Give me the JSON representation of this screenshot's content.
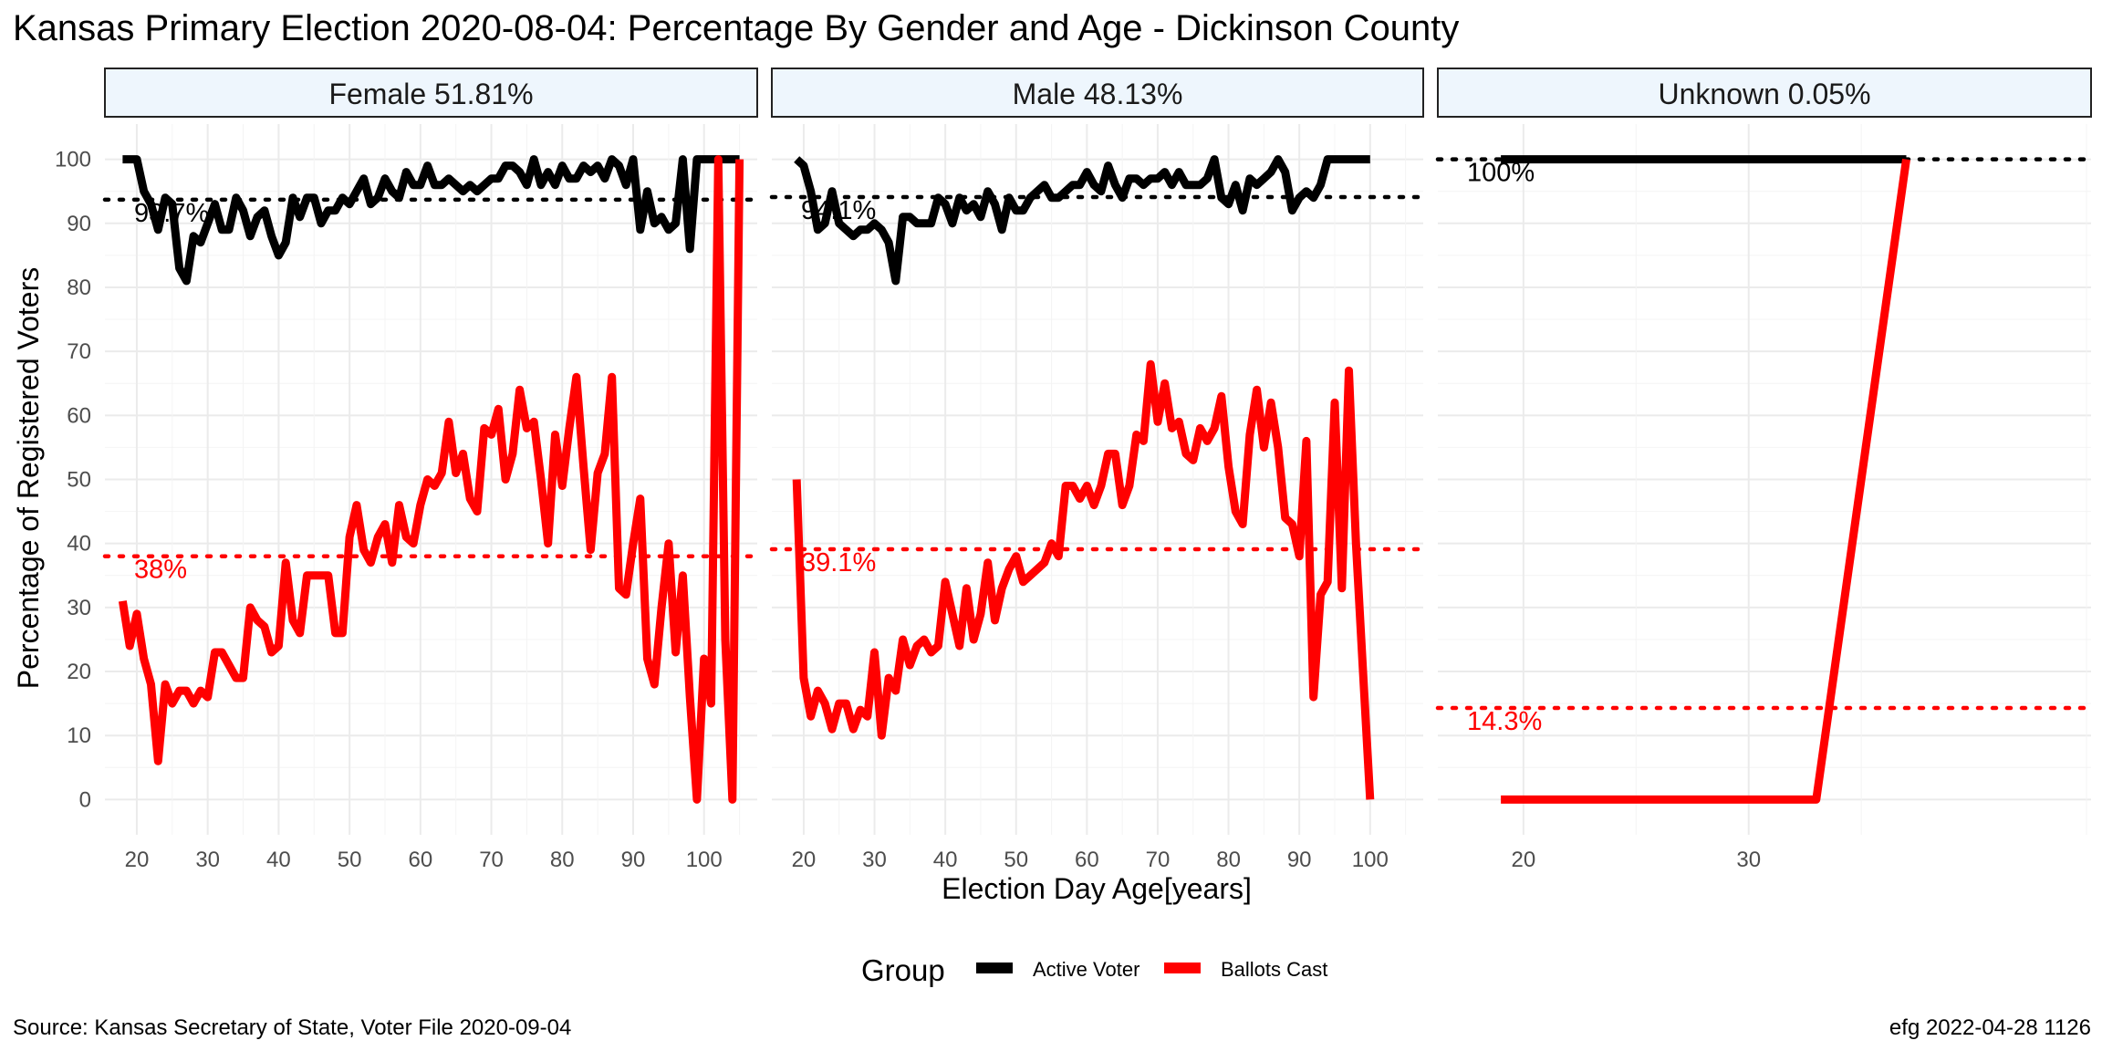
{
  "title": "Kansas Primary Election 2020-08-04:  Percentage By Gender and Age - Dickinson County",
  "xlabel": "Election Day Age[years]",
  "ylabel": "Percentage of Registered Voters",
  "legend": {
    "title": "Group",
    "position": "bottom",
    "items": [
      {
        "label": "Active Voter",
        "color": "#000000"
      },
      {
        "label": "Ballots Cast",
        "color": "#ff0000"
      }
    ]
  },
  "source": "Source:  Kansas Secretary of State, Voter File  2020-09-04",
  "stamp": "efg 2022-04-28 1126",
  "colors": {
    "active": "#000000",
    "ballots": "#ff0000",
    "strip_fill": "#eef6fd",
    "grid": "#ebebeb"
  },
  "chart_data": [
    {
      "type": "line",
      "panel": "Female 51.81%",
      "xlim": [
        15.5,
        107.5
      ],
      "ylim": [
        -5.5,
        105.5
      ],
      "x_ticks": [
        20,
        30,
        40,
        50,
        60,
        70,
        80,
        90,
        100
      ],
      "y_ticks": [
        0,
        10,
        20,
        30,
        40,
        50,
        60,
        70,
        80,
        90,
        100
      ],
      "grid": true,
      "reference_lines": [
        {
          "series": "Active Voter",
          "value": 93.7,
          "label": "93.7%"
        },
        {
          "series": "Ballots Cast",
          "value": 38.0,
          "label": "38%"
        }
      ],
      "series": [
        {
          "name": "Active Voter",
          "x": [
            18,
            19,
            20,
            21,
            22,
            23,
            24,
            25,
            26,
            27,
            28,
            29,
            30,
            31,
            32,
            33,
            34,
            35,
            36,
            37,
            38,
            39,
            40,
            41,
            42,
            43,
            44,
            45,
            46,
            47,
            48,
            49,
            50,
            51,
            52,
            53,
            54,
            55,
            56,
            57,
            58,
            59,
            60,
            61,
            62,
            63,
            64,
            65,
            66,
            67,
            68,
            69,
            70,
            71,
            72,
            73,
            74,
            75,
            76,
            77,
            78,
            79,
            80,
            81,
            82,
            83,
            84,
            85,
            86,
            87,
            88,
            89,
            90,
            91,
            92,
            93,
            94,
            95,
            96,
            97,
            98,
            99,
            100,
            101,
            102,
            103,
            104,
            105
          ],
          "y": [
            100,
            100,
            100,
            95,
            93,
            89,
            94,
            93,
            83,
            81,
            88,
            87,
            90,
            93,
            89,
            89,
            94,
            92,
            88,
            91,
            92,
            88,
            85,
            87,
            94,
            91,
            94,
            94,
            90,
            92,
            92,
            94,
            93,
            95,
            97,
            93,
            94,
            97,
            95,
            94,
            98,
            96,
            96,
            99,
            96,
            96,
            97,
            96,
            95,
            96,
            95,
            96,
            97,
            97,
            99,
            99,
            98,
            96,
            100,
            96,
            98,
            96,
            99,
            97,
            97,
            99,
            98,
            99,
            97,
            100,
            99,
            96,
            100,
            89,
            95,
            90,
            91,
            89,
            90,
            100,
            86,
            100,
            100,
            100,
            100,
            100,
            100,
            100
          ]
        },
        {
          "name": "Ballots Cast",
          "x": [
            18,
            19,
            20,
            21,
            22,
            23,
            24,
            25,
            26,
            27,
            28,
            29,
            30,
            31,
            32,
            33,
            34,
            35,
            36,
            37,
            38,
            39,
            40,
            41,
            42,
            43,
            44,
            45,
            46,
            47,
            48,
            49,
            50,
            51,
            52,
            53,
            54,
            55,
            56,
            57,
            58,
            59,
            60,
            61,
            62,
            63,
            64,
            65,
            66,
            67,
            68,
            69,
            70,
            71,
            72,
            73,
            74,
            75,
            76,
            77,
            78,
            79,
            80,
            81,
            82,
            83,
            84,
            85,
            86,
            87,
            88,
            89,
            90,
            91,
            92,
            93,
            94,
            95,
            96,
            97,
            98,
            99,
            100,
            101,
            102,
            103,
            104,
            105
          ],
          "y": [
            31,
            24,
            29,
            22,
            18,
            6,
            18,
            15,
            17,
            17,
            15,
            17,
            16,
            23,
            23,
            21,
            19,
            19,
            30,
            28,
            27,
            23,
            24,
            37,
            28,
            26,
            35,
            35,
            35,
            35,
            26,
            26,
            41,
            46,
            39,
            37,
            41,
            43,
            37,
            46,
            41,
            40,
            46,
            50,
            49,
            51,
            59,
            51,
            54,
            47,
            45,
            58,
            57,
            61,
            50,
            54,
            64,
            58,
            59,
            50,
            40,
            57,
            49,
            58,
            66,
            52,
            39,
            51,
            54,
            66,
            33,
            32,
            40,
            47,
            22,
            18,
            30,
            40,
            23,
            35,
            16,
            0,
            22,
            15,
            100,
            25,
            0,
            100
          ]
        }
      ]
    },
    {
      "type": "line",
      "panel": "Male 48.13%",
      "xlim": [
        15.5,
        107.5
      ],
      "ylim": [
        -5.5,
        105.5
      ],
      "x_ticks": [
        20,
        30,
        40,
        50,
        60,
        70,
        80,
        90,
        100
      ],
      "y_ticks": [
        0,
        10,
        20,
        30,
        40,
        50,
        60,
        70,
        80,
        90,
        100
      ],
      "grid": true,
      "reference_lines": [
        {
          "series": "Active Voter",
          "value": 94.1,
          "label": "94.1%"
        },
        {
          "series": "Ballots Cast",
          "value": 39.1,
          "label": "39.1%"
        }
      ],
      "series": [
        {
          "name": "Active Voter",
          "x": [
            19,
            20,
            21,
            22,
            23,
            24,
            25,
            26,
            27,
            28,
            29,
            30,
            31,
            32,
            33,
            34,
            35,
            36,
            37,
            38,
            39,
            40,
            41,
            42,
            43,
            44,
            45,
            46,
            47,
            48,
            49,
            50,
            51,
            52,
            53,
            54,
            55,
            56,
            57,
            58,
            59,
            60,
            61,
            62,
            63,
            64,
            65,
            66,
            67,
            68,
            69,
            70,
            71,
            72,
            73,
            74,
            75,
            76,
            77,
            78,
            79,
            80,
            81,
            82,
            83,
            84,
            85,
            86,
            87,
            88,
            89,
            90,
            91,
            92,
            93,
            94,
            95,
            96,
            97,
            98,
            99,
            100
          ],
          "y": [
            100,
            99,
            95,
            89,
            90,
            95,
            90,
            89,
            88,
            89,
            89,
            90,
            89,
            87,
            81,
            91,
            91,
            90,
            90,
            90,
            94,
            93,
            90,
            94,
            92,
            93,
            91,
            95,
            93,
            89,
            94,
            92,
            92,
            94,
            95,
            96,
            94,
            94,
            95,
            96,
            96,
            98,
            96,
            95,
            99,
            96,
            94,
            97,
            97,
            96,
            97,
            97,
            98,
            96,
            98,
            96,
            96,
            96,
            97,
            100,
            94,
            93,
            96,
            92,
            97,
            96,
            97,
            98,
            100,
            98,
            92,
            94,
            95,
            94,
            96,
            100,
            100,
            100,
            100,
            100,
            100,
            100
          ]
        },
        {
          "name": "Ballots Cast",
          "x": [
            19,
            20,
            21,
            22,
            23,
            24,
            25,
            26,
            27,
            28,
            29,
            30,
            31,
            32,
            33,
            34,
            35,
            36,
            37,
            38,
            39,
            40,
            41,
            42,
            43,
            44,
            45,
            46,
            47,
            48,
            49,
            50,
            51,
            52,
            53,
            54,
            55,
            56,
            57,
            58,
            59,
            60,
            61,
            62,
            63,
            64,
            65,
            66,
            67,
            68,
            69,
            70,
            71,
            72,
            73,
            74,
            75,
            76,
            77,
            78,
            79,
            80,
            81,
            82,
            83,
            84,
            85,
            86,
            87,
            88,
            89,
            90,
            91,
            92,
            93,
            94,
            95,
            96,
            97,
            98,
            99,
            100
          ],
          "y": [
            50,
            19,
            13,
            17,
            15,
            11,
            15,
            15,
            11,
            14,
            13,
            23,
            10,
            19,
            17,
            25,
            21,
            24,
            25,
            23,
            24,
            34,
            29,
            24,
            33,
            25,
            29,
            37,
            28,
            33,
            36,
            38,
            34,
            35,
            36,
            37,
            40,
            38,
            49,
            49,
            47,
            49,
            46,
            49,
            54,
            54,
            46,
            49,
            57,
            56,
            68,
            59,
            65,
            58,
            59,
            54,
            53,
            58,
            56,
            58,
            63,
            52,
            45,
            43,
            57,
            64,
            55,
            62,
            55,
            44,
            43,
            38,
            56,
            16,
            32,
            34,
            62,
            33,
            67,
            40,
            20,
            0
          ]
        }
      ]
    },
    {
      "type": "line",
      "panel": "Unknown 0.05%",
      "xlim": [
        16.2,
        45.2
      ],
      "ylim": [
        -5.5,
        105.5
      ],
      "x_ticks": [
        20,
        30
      ],
      "y_ticks": [
        0,
        10,
        20,
        30,
        40,
        50,
        60,
        70,
        80,
        90,
        100
      ],
      "grid": true,
      "reference_lines": [
        {
          "series": "Active Voter",
          "value": 100,
          "label": "100%"
        },
        {
          "series": "Ballots Cast",
          "value": 14.3,
          "label": "14.3%"
        }
      ],
      "series": [
        {
          "name": "Active Voter",
          "x": [
            19,
            33,
            37
          ],
          "y": [
            100,
            100,
            100
          ]
        },
        {
          "name": "Ballots Cast",
          "x": [
            19,
            33,
            37
          ],
          "y": [
            0,
            0,
            100
          ]
        }
      ]
    }
  ]
}
